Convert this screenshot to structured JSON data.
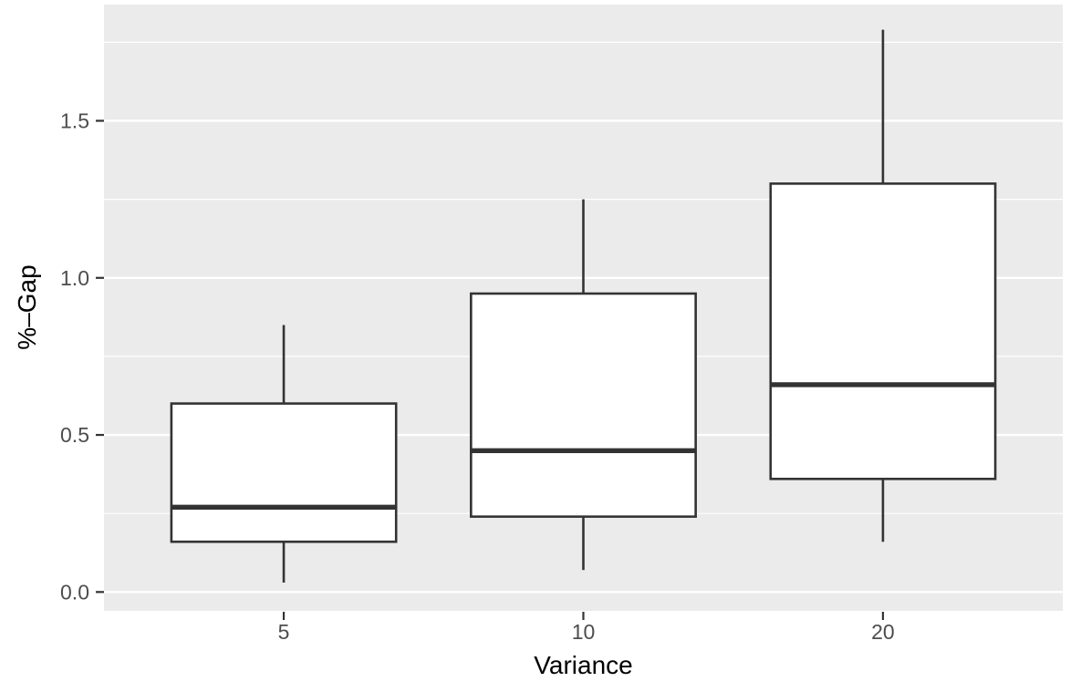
{
  "chart_data": {
    "type": "boxplot",
    "title": "",
    "xlabel": "Variance",
    "ylabel": "%–Gap",
    "categories": [
      "5",
      "10",
      "20"
    ],
    "series": [
      {
        "name": "5",
        "min": 0.03,
        "q1": 0.16,
        "median": 0.27,
        "q3": 0.6,
        "max": 0.85
      },
      {
        "name": "10",
        "min": 0.07,
        "q1": 0.24,
        "median": 0.45,
        "q3": 0.95,
        "max": 1.25
      },
      {
        "name": "20",
        "min": 0.16,
        "q1": 0.36,
        "median": 0.66,
        "q3": 1.3,
        "max": 1.79
      }
    ],
    "x_axis": {
      "tick_labels": [
        "5",
        "10",
        "20"
      ]
    },
    "y_axis": {
      "ticks": [
        0.0,
        0.5,
        1.0,
        1.5
      ],
      "tick_labels": [
        "0.0",
        "0.5",
        "1.0",
        "1.5"
      ],
      "minor_ticks": [
        0.25,
        0.75,
        1.25,
        1.75
      ],
      "ylim": [
        -0.06,
        1.87
      ]
    },
    "grid": "major-and-minor",
    "legend_position": "none",
    "style": {
      "panel_bg": "#EBEBEB",
      "grid_color": "#FFFFFF",
      "box_stroke": "#333333",
      "box_fill": "#FFFFFF",
      "tick_mark_color": "#333333",
      "tick_label_color": "#4D4D4D",
      "axis_title_color": "#000000",
      "background": "#FFFFFF"
    }
  }
}
